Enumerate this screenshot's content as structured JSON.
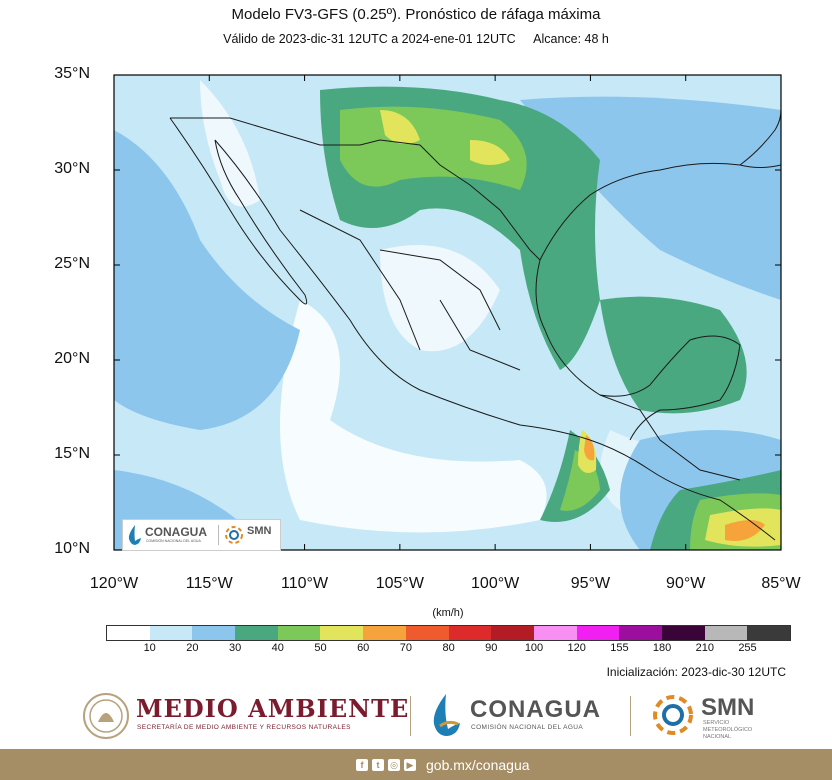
{
  "header": {
    "title": "Modelo FV3-GFS (0.25º). Pronóstico de ráfaga máxima",
    "valid": "Válido de 2023-dic-31 12UTC a 2024-ene-01 12UTC",
    "range": "Alcance: 48 h"
  },
  "map": {
    "lon_range": [
      -120,
      -85
    ],
    "lat_range": [
      10,
      35
    ],
    "lat_labels": [
      "35°N",
      "30°N",
      "25°N",
      "20°N",
      "15°N",
      "10°N"
    ],
    "lon_labels": [
      "120°W",
      "115°W",
      "110°W",
      "105°W",
      "100°W",
      "95°W",
      "90°W",
      "85°W"
    ],
    "ocean_color": "#c6e8f7",
    "outline_color": "#1a1a1a",
    "inset_logo": {
      "conagua": "CONAGUA",
      "conagua_sub": "COMISIÓN NACIONAL DEL AGUA",
      "smn": "SMN"
    }
  },
  "colorbar": {
    "units": "(km/h)",
    "colors": [
      "#ffffff",
      "#c6e8f7",
      "#8cc6ec",
      "#4aa880",
      "#7cc95a",
      "#e2e45c",
      "#f6a33c",
      "#ef5b2c",
      "#dd2a2a",
      "#b31b25",
      "#f890f4",
      "#f11ff1",
      "#9c0f9e",
      "#3a0438",
      "#b8b8b8",
      "#3a3a3a"
    ],
    "ticks": [
      "10",
      "20",
      "30",
      "40",
      "50",
      "60",
      "70",
      "80",
      "90",
      "100",
      "120",
      "155",
      "180",
      "210",
      "255"
    ]
  },
  "init": "Inicialización: 2023-dic-30 12UTC",
  "footer": {
    "medio_ambiente": "MEDIO AMBIENTE",
    "medio_ambiente_sub": "SECRETARÍA DE MEDIO AMBIENTE Y RECURSOS NATURALES",
    "conagua": "CONAGUA",
    "conagua_sub": "COMISIÓN NACIONAL DEL AGUA",
    "smn": "SMN",
    "smn_sub": "SERVICIO METEOROLÓGICO NACIONAL",
    "url": "gob.mx/conagua",
    "bar_color": "#a58d65"
  }
}
